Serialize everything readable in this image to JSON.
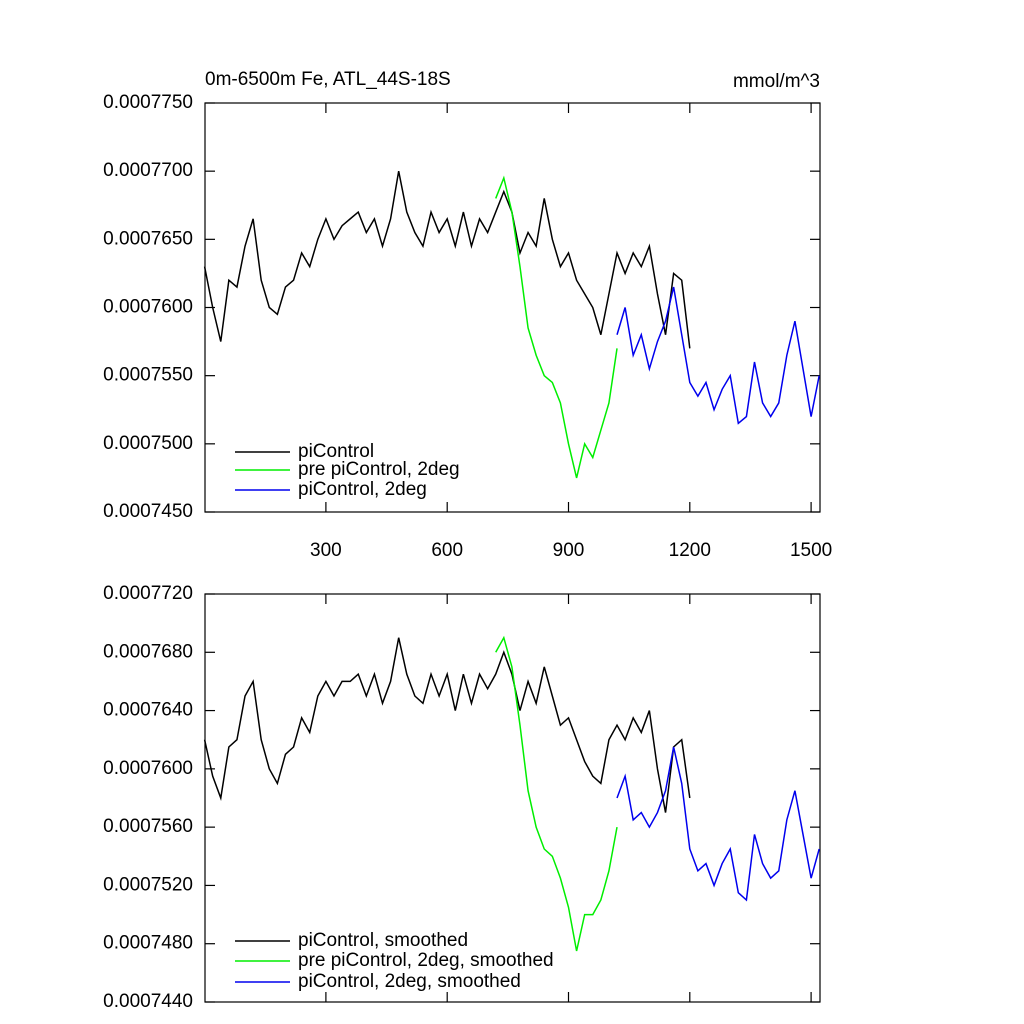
{
  "chart_data": [
    {
      "type": "line",
      "title": "0m-6500m Fe, ATL_44S-18S",
      "units": "mmol/m^3",
      "xlim": [
        1,
        1522
      ],
      "xticks": [
        300,
        600,
        900,
        1200,
        1500
      ],
      "ylim": [
        0.000745,
        0.000775
      ],
      "yticks": [
        {
          "value": 0.000745,
          "label": "0.0007450"
        },
        {
          "value": 0.00075,
          "label": "0.0007500"
        },
        {
          "value": 0.000755,
          "label": "0.0007550"
        },
        {
          "value": 0.00076,
          "label": "0.0007600"
        },
        {
          "value": 0.000765,
          "label": "0.0007650"
        },
        {
          "value": 0.00077,
          "label": "0.0007700"
        },
        {
          "value": 0.000775,
          "label": "0.0007750"
        }
      ],
      "series": [
        {
          "name": "piControl",
          "color": "#000000",
          "x": [
            0,
            20,
            40,
            60,
            80,
            100,
            120,
            140,
            160,
            180,
            200,
            220,
            240,
            260,
            280,
            300,
            320,
            340,
            360,
            380,
            400,
            420,
            440,
            460,
            480,
            500,
            520,
            540,
            560,
            580,
            600,
            620,
            640,
            660,
            680,
            700,
            720,
            740,
            760,
            780,
            800,
            820,
            840,
            860,
            880,
            900,
            920,
            940,
            960,
            980,
            1000,
            1020,
            1040,
            1060,
            1080,
            1100,
            1120,
            1140,
            1160,
            1180,
            1200
          ],
          "values": [
            0.000763,
            0.00076,
            0.0007575,
            0.000762,
            0.0007615,
            0.0007645,
            0.0007665,
            0.000762,
            0.00076,
            0.0007595,
            0.0007615,
            0.000762,
            0.000764,
            0.000763,
            0.000765,
            0.0007665,
            0.000765,
            0.000766,
            0.0007665,
            0.000767,
            0.0007655,
            0.0007665,
            0.0007645,
            0.0007665,
            0.00077,
            0.000767,
            0.0007655,
            0.0007645,
            0.000767,
            0.0007655,
            0.0007665,
            0.0007645,
            0.000767,
            0.0007645,
            0.0007665,
            0.0007655,
            0.000767,
            0.0007685,
            0.000767,
            0.000764,
            0.0007655,
            0.0007645,
            0.000768,
            0.000765,
            0.000763,
            0.000764,
            0.000762,
            0.000761,
            0.00076,
            0.000758,
            0.000761,
            0.000764,
            0.0007625,
            0.000764,
            0.000763,
            0.0007645,
            0.000761,
            0.000758,
            0.0007625,
            0.000762,
            0.000757
          ]
        },
        {
          "name": "pre piControl, 2deg",
          "color": "#00ee00",
          "x": [
            720,
            740,
            760,
            780,
            800,
            820,
            840,
            860,
            880,
            900,
            920,
            940,
            960,
            980,
            1000,
            1020
          ],
          "values": [
            0.000768,
            0.0007695,
            0.000767,
            0.000763,
            0.0007585,
            0.0007565,
            0.000755,
            0.0007545,
            0.000753,
            0.00075,
            0.0007475,
            0.00075,
            0.000749,
            0.000751,
            0.000753,
            0.000757
          ]
        },
        {
          "name": "piControl, 2deg",
          "color": "#0000ee",
          "x": [
            1020,
            1040,
            1060,
            1080,
            1100,
            1120,
            1140,
            1160,
            1180,
            1200,
            1220,
            1240,
            1260,
            1280,
            1300,
            1320,
            1340,
            1360,
            1380,
            1400,
            1420,
            1440,
            1460,
            1480,
            1500,
            1520
          ],
          "values": [
            0.000758,
            0.00076,
            0.0007565,
            0.000758,
            0.0007555,
            0.0007575,
            0.000759,
            0.0007615,
            0.000758,
            0.0007545,
            0.0007535,
            0.0007545,
            0.0007525,
            0.000754,
            0.000755,
            0.0007515,
            0.000752,
            0.000756,
            0.000753,
            0.000752,
            0.000753,
            0.0007565,
            0.000759,
            0.0007555,
            0.000752,
            0.000755
          ]
        }
      ]
    },
    {
      "type": "line",
      "xlim": [
        1,
        1522
      ],
      "ylim": [
        0.000744,
        0.000772
      ],
      "yticks": [
        {
          "value": 0.000744,
          "label": "0.0007440"
        },
        {
          "value": 0.000748,
          "label": "0.0007480"
        },
        {
          "value": 0.000752,
          "label": "0.0007520"
        },
        {
          "value": 0.000756,
          "label": "0.0007560"
        },
        {
          "value": 0.00076,
          "label": "0.0007600"
        },
        {
          "value": 0.000764,
          "label": "0.0007640"
        },
        {
          "value": 0.000768,
          "label": "0.0007680"
        },
        {
          "value": 0.000772,
          "label": "0.0007720"
        }
      ],
      "series": [
        {
          "name": "piControl, smoothed",
          "color": "#000000",
          "x": [
            0,
            20,
            40,
            60,
            80,
            100,
            120,
            140,
            160,
            180,
            200,
            220,
            240,
            260,
            280,
            300,
            320,
            340,
            360,
            380,
            400,
            420,
            440,
            460,
            480,
            500,
            520,
            540,
            560,
            580,
            600,
            620,
            640,
            660,
            680,
            700,
            720,
            740,
            760,
            780,
            800,
            820,
            840,
            860,
            880,
            900,
            920,
            940,
            960,
            980,
            1000,
            1020,
            1040,
            1060,
            1080,
            1100,
            1120,
            1140,
            1160,
            1180,
            1200
          ],
          "values": [
            0.000762,
            0.0007595,
            0.000758,
            0.0007615,
            0.000762,
            0.000765,
            0.000766,
            0.000762,
            0.00076,
            0.000759,
            0.000761,
            0.0007615,
            0.0007635,
            0.0007625,
            0.000765,
            0.000766,
            0.000765,
            0.000766,
            0.000766,
            0.0007665,
            0.000765,
            0.0007665,
            0.0007645,
            0.000766,
            0.000769,
            0.0007665,
            0.000765,
            0.0007645,
            0.0007665,
            0.000765,
            0.0007665,
            0.000764,
            0.0007665,
            0.0007645,
            0.0007665,
            0.0007655,
            0.0007665,
            0.000768,
            0.0007665,
            0.000764,
            0.000766,
            0.0007645,
            0.000767,
            0.000765,
            0.000763,
            0.0007635,
            0.000762,
            0.0007605,
            0.0007595,
            0.000759,
            0.000762,
            0.000763,
            0.000762,
            0.0007635,
            0.0007625,
            0.000764,
            0.00076,
            0.000757,
            0.0007615,
            0.000762,
            0.000758
          ]
        },
        {
          "name": "pre piControl, 2deg, smoothed",
          "color": "#00ee00",
          "x": [
            720,
            740,
            760,
            780,
            800,
            820,
            840,
            860,
            880,
            900,
            920,
            940,
            960,
            980,
            1000,
            1020
          ],
          "values": [
            0.000768,
            0.000769,
            0.000767,
            0.000763,
            0.0007585,
            0.000756,
            0.0007545,
            0.000754,
            0.0007525,
            0.0007505,
            0.0007475,
            0.00075,
            0.00075,
            0.000751,
            0.000753,
            0.000756
          ]
        },
        {
          "name": "piControl, 2deg, smoothed",
          "color": "#0000ee",
          "x": [
            1020,
            1040,
            1060,
            1080,
            1100,
            1120,
            1140,
            1160,
            1180,
            1200,
            1220,
            1240,
            1260,
            1280,
            1300,
            1320,
            1340,
            1360,
            1380,
            1400,
            1420,
            1440,
            1460,
            1480,
            1500,
            1520
          ],
          "values": [
            0.000758,
            0.0007595,
            0.0007565,
            0.000757,
            0.000756,
            0.000757,
            0.0007585,
            0.0007615,
            0.000759,
            0.0007545,
            0.000753,
            0.0007535,
            0.000752,
            0.0007535,
            0.0007545,
            0.0007515,
            0.000751,
            0.0007555,
            0.0007535,
            0.0007525,
            0.000753,
            0.0007565,
            0.0007585,
            0.0007555,
            0.0007525,
            0.0007545
          ]
        }
      ]
    }
  ]
}
